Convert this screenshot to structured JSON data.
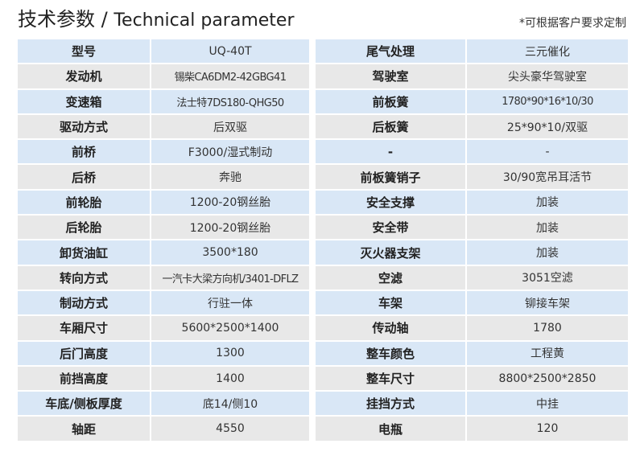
{
  "header": {
    "title_cn": "技术参数",
    "separator": " / ",
    "title_en": "Technical parameter",
    "note": "*可根据客户要求定制"
  },
  "left": [
    {
      "k": "型号",
      "v": "UQ-40T"
    },
    {
      "k": "发动机",
      "v": "锡柴CA6DM2-42GBG41"
    },
    {
      "k": "变速箱",
      "v": "法士特7DS180-QHG50"
    },
    {
      "k": "驱动方式",
      "v": "后双驱"
    },
    {
      "k": "前桥",
      "v": "F3000/湿式制动"
    },
    {
      "k": "后桥",
      "v": "奔驰"
    },
    {
      "k": "前轮胎",
      "v": "1200-20钢丝胎"
    },
    {
      "k": "后轮胎",
      "v": "1200-20钢丝胎"
    },
    {
      "k": "卸货油缸",
      "v": "3500*180"
    },
    {
      "k": "转向方式",
      "v": "一汽卡大梁方向机/3401-DFLZ"
    },
    {
      "k": "制动方式",
      "v": "行驻一体"
    },
    {
      "k": "车厢尺寸",
      "v": "5600*2500*1400"
    },
    {
      "k": "后门高度",
      "v": "1300"
    },
    {
      "k": "前挡高度",
      "v": "1400"
    },
    {
      "k": "车底/侧板厚度",
      "v": "底14/侧10"
    },
    {
      "k": "轴距",
      "v": "4550"
    }
  ],
  "right": [
    {
      "k": "尾气处理",
      "v": "三元催化"
    },
    {
      "k": "驾驶室",
      "v": "尖头豪华驾驶室"
    },
    {
      "k": "前板簧",
      "v": "1780*90*16*10/30"
    },
    {
      "k": "后板簧",
      "v": "25*90*10/双驱"
    },
    {
      "k": "-",
      "v": "-"
    },
    {
      "k": "前板簧销子",
      "v": "30/90宽吊耳活节"
    },
    {
      "k": "安全支撑",
      "v": "加装"
    },
    {
      "k": "安全带",
      "v": "加装"
    },
    {
      "k": "灭火器支架",
      "v": "加装"
    },
    {
      "k": "空滤",
      "v": "3051空滤"
    },
    {
      "k": "车架",
      "v": "铆接车架"
    },
    {
      "k": "传动轴",
      "v": "1780"
    },
    {
      "k": "整车颜色",
      "v": "工程黄"
    },
    {
      "k": "整车尺寸",
      "v": "8800*2500*2850"
    },
    {
      "k": "挂挡方式",
      "v": "中挂"
    },
    {
      "k": "电瓶",
      "v": "120"
    }
  ]
}
